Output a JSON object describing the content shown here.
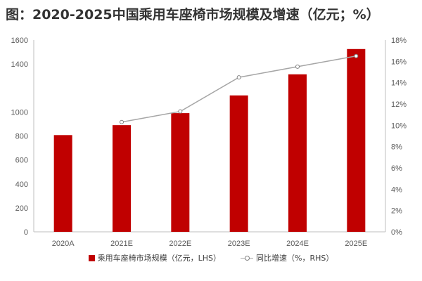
{
  "chart_data": {
    "type": "bar",
    "title": "图：2020-2025中国乘用车座椅市场规模及增速（亿元；%）",
    "categories": [
      "2020A",
      "2021E",
      "2022E",
      "2023E",
      "2024E",
      "2025E"
    ],
    "series": [
      {
        "name": "乘用车座椅市场规模（亿元，LHS）",
        "type": "bar",
        "axis": "left",
        "values": [
          807,
          890,
          990,
          1138,
          1314,
          1525
        ]
      },
      {
        "name": "同比增速（%，RHS）",
        "type": "line",
        "axis": "right",
        "values": [
          null,
          10.3,
          11.3,
          14.5,
          15.5,
          16.5
        ]
      }
    ],
    "left_axis": {
      "ylim": [
        0,
        1600
      ],
      "tick_labels": [
        "0",
        "200",
        "400",
        "600",
        "800",
        "1000",
        "1400",
        "1600"
      ],
      "tick_values": [
        0,
        200,
        400,
        600,
        800,
        1000,
        1400,
        1600
      ]
    },
    "right_axis": {
      "ylim": [
        0,
        18
      ],
      "tick_labels": [
        "0%",
        "2%",
        "4%",
        "6%",
        "8%",
        "10%",
        "12%",
        "14%",
        "16%",
        "18%"
      ],
      "tick_values": [
        0,
        2,
        4,
        6,
        8,
        10,
        12,
        14,
        16,
        18
      ]
    },
    "grid": false,
    "legend_position": "bottom"
  },
  "colors": {
    "bar": "#c00000",
    "line": "#a6a6a6",
    "axis": "#bfbfbf",
    "text": "#595959"
  }
}
